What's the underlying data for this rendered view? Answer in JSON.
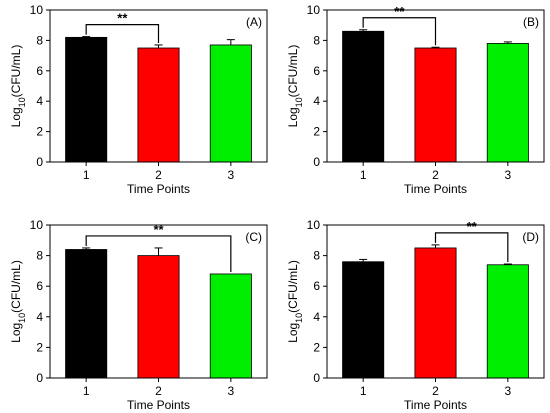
{
  "chart_data": [
    {
      "type": "bar",
      "panel_label": "(A)",
      "categories": [
        "1",
        "2",
        "3"
      ],
      "values": [
        8.2,
        7.5,
        7.7
      ],
      "errors": [
        0.05,
        0.2,
        0.35
      ],
      "colors": [
        "#000000",
        "#ff0000",
        "#00ee00"
      ],
      "xlabel": "Time Points",
      "ylabel": "Log10(CFU/mL)",
      "ylim": [
        0,
        10
      ],
      "yticks": [
        0,
        2,
        4,
        6,
        8,
        10
      ],
      "significance": [
        {
          "from": "1",
          "to": "2",
          "label": "**"
        }
      ]
    },
    {
      "type": "bar",
      "panel_label": "(B)",
      "categories": [
        "1",
        "2",
        "3"
      ],
      "values": [
        8.6,
        7.5,
        7.8
      ],
      "errors": [
        0.1,
        0.05,
        0.1
      ],
      "colors": [
        "#000000",
        "#ff0000",
        "#00ee00"
      ],
      "xlabel": "Time Points",
      "ylabel": "Log10(CFU/mL)",
      "ylim": [
        0,
        10
      ],
      "yticks": [
        0,
        2,
        4,
        6,
        8,
        10
      ],
      "significance": [
        {
          "from": "1",
          "to": "2",
          "label": "**"
        }
      ]
    },
    {
      "type": "bar",
      "panel_label": "(C)",
      "categories": [
        "1",
        "2",
        "3"
      ],
      "values": [
        8.4,
        8.0,
        6.8
      ],
      "errors": [
        0.1,
        0.5,
        0.0
      ],
      "colors": [
        "#000000",
        "#ff0000",
        "#00ee00"
      ],
      "xlabel": "Time Points",
      "ylabel": "Log10(CFU/mL)",
      "ylim": [
        0,
        10
      ],
      "yticks": [
        0,
        2,
        4,
        6,
        8,
        10
      ],
      "significance": [
        {
          "from": "1",
          "to": "3",
          "label": "**"
        }
      ]
    },
    {
      "type": "bar",
      "panel_label": "(D)",
      "categories": [
        "1",
        "2",
        "3"
      ],
      "values": [
        7.6,
        8.5,
        7.4
      ],
      "errors": [
        0.15,
        0.2,
        0.05
      ],
      "colors": [
        "#000000",
        "#ff0000",
        "#00ee00"
      ],
      "xlabel": "Time Points",
      "ylabel": "Log10(CFU/mL)",
      "ylim": [
        0,
        10
      ],
      "yticks": [
        0,
        2,
        4,
        6,
        8,
        10
      ],
      "significance": [
        {
          "from": "2",
          "to": "3",
          "label": "**"
        }
      ]
    }
  ]
}
